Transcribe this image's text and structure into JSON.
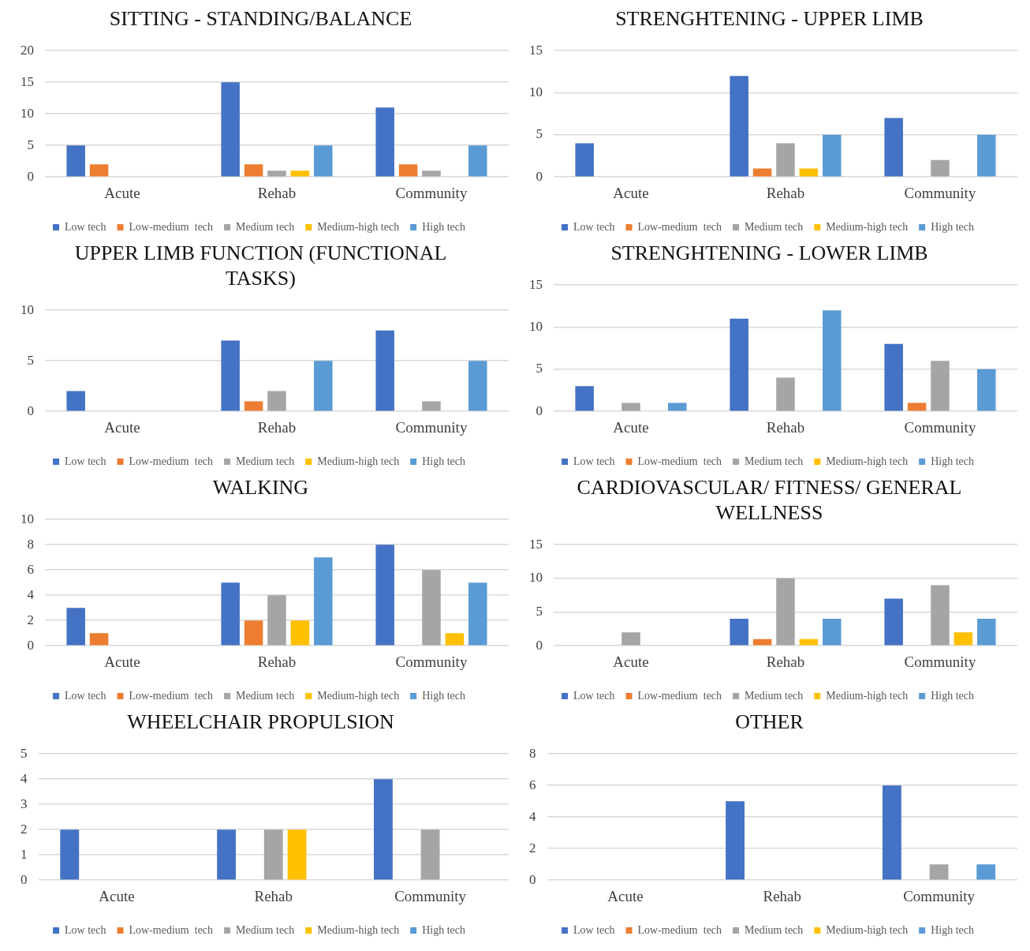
{
  "chart_data": [
    {
      "type": "bar",
      "title": "SITTING - STANDING/BALANCE",
      "categories": [
        "Acute",
        "Rehab",
        "Community"
      ],
      "ylim": [
        0,
        20
      ],
      "yticks": [
        0,
        5,
        10,
        15,
        20
      ],
      "grid": "y",
      "legend": "bottom",
      "series": [
        {
          "name": "Low tech",
          "color": "#4472c4",
          "values": [
            5,
            15,
            11
          ]
        },
        {
          "name": "Low-medium  tech",
          "color": "#ed7d31",
          "values": [
            2,
            2,
            2
          ]
        },
        {
          "name": "Medium tech",
          "color": "#a5a5a5",
          "values": [
            0,
            1,
            1
          ]
        },
        {
          "name": "Medium-high tech",
          "color": "#ffc000",
          "values": [
            0,
            1,
            0
          ]
        },
        {
          "name": "High tech",
          "color": "#5b9bd5",
          "values": [
            0,
            5,
            5
          ]
        }
      ]
    },
    {
      "type": "bar",
      "title": "STRENGHTENING - UPPER LIMB",
      "categories": [
        "Acute",
        "Rehab",
        "Community"
      ],
      "ylim": [
        0,
        15
      ],
      "yticks": [
        0,
        5,
        10,
        15
      ],
      "grid": "y",
      "legend": "bottom",
      "series": [
        {
          "name": "Low tech",
          "color": "#4472c4",
          "values": [
            4,
            12,
            7
          ]
        },
        {
          "name": "Low-medium  tech",
          "color": "#ed7d31",
          "values": [
            0,
            1,
            0
          ]
        },
        {
          "name": "Medium tech",
          "color": "#a5a5a5",
          "values": [
            0,
            4,
            2
          ]
        },
        {
          "name": "Medium-high tech",
          "color": "#ffc000",
          "values": [
            0,
            1,
            0
          ]
        },
        {
          "name": "High tech",
          "color": "#5b9bd5",
          "values": [
            0,
            5,
            5
          ]
        }
      ]
    },
    {
      "type": "bar",
      "title": "UPPER LIMB FUNCTION (FUNCTIONAL TASKS)",
      "categories": [
        "Acute",
        "Rehab",
        "Community"
      ],
      "ylim": [
        0,
        10
      ],
      "yticks": [
        0,
        5,
        10
      ],
      "grid": "y",
      "legend": "bottom",
      "series": [
        {
          "name": "Low tech",
          "color": "#4472c4",
          "values": [
            2,
            7,
            8
          ]
        },
        {
          "name": "Low-medium  tech",
          "color": "#ed7d31",
          "values": [
            0,
            1,
            0
          ]
        },
        {
          "name": "Medium tech",
          "color": "#a5a5a5",
          "values": [
            0,
            2,
            1
          ]
        },
        {
          "name": "Medium-high tech",
          "color": "#ffc000",
          "values": [
            0,
            0,
            0
          ]
        },
        {
          "name": "High tech",
          "color": "#5b9bd5",
          "values": [
            0,
            5,
            5
          ]
        }
      ]
    },
    {
      "type": "bar",
      "title": "STRENGHTENING - LOWER LIMB",
      "categories": [
        "Acute",
        "Rehab",
        "Community"
      ],
      "ylim": [
        0,
        15
      ],
      "yticks": [
        0,
        5,
        10,
        15
      ],
      "grid": "y",
      "legend": "bottom",
      "series": [
        {
          "name": "Low tech",
          "color": "#4472c4",
          "values": [
            3,
            11,
            8
          ]
        },
        {
          "name": "Low-medium  tech",
          "color": "#ed7d31",
          "values": [
            0,
            0,
            1
          ]
        },
        {
          "name": "Medium tech",
          "color": "#a5a5a5",
          "values": [
            1,
            4,
            6
          ]
        },
        {
          "name": "Medium-high tech",
          "color": "#ffc000",
          "values": [
            0,
            0,
            0
          ]
        },
        {
          "name": "High tech",
          "color": "#5b9bd5",
          "values": [
            1,
            12,
            5
          ]
        }
      ]
    },
    {
      "type": "bar",
      "title": "WALKING",
      "categories": [
        "Acute",
        "Rehab",
        "Community"
      ],
      "ylim": [
        0,
        10
      ],
      "yticks": [
        0,
        2,
        4,
        6,
        8,
        10
      ],
      "grid": "y",
      "legend": "bottom",
      "series": [
        {
          "name": "Low tech",
          "color": "#4472c4",
          "values": [
            3,
            5,
            8
          ]
        },
        {
          "name": "Low-medium  tech",
          "color": "#ed7d31",
          "values": [
            1,
            2,
            0
          ]
        },
        {
          "name": "Medium tech",
          "color": "#a5a5a5",
          "values": [
            0,
            4,
            6
          ]
        },
        {
          "name": "Medium-high tech",
          "color": "#ffc000",
          "values": [
            0,
            2,
            1
          ]
        },
        {
          "name": "High tech",
          "color": "#5b9bd5",
          "values": [
            0,
            7,
            5
          ]
        }
      ]
    },
    {
      "type": "bar",
      "title": "CARDIOVASCULAR/ FITNESS/ GENERAL WELLNESS",
      "categories": [
        "Acute",
        "Rehab",
        "Community"
      ],
      "ylim": [
        0,
        15
      ],
      "yticks": [
        0,
        5,
        10,
        15
      ],
      "grid": "y",
      "legend": "bottom",
      "series": [
        {
          "name": "Low tech",
          "color": "#4472c4",
          "values": [
            0,
            4,
            7
          ]
        },
        {
          "name": "Low-medium  tech",
          "color": "#ed7d31",
          "values": [
            0,
            1,
            0
          ]
        },
        {
          "name": "Medium tech",
          "color": "#a5a5a5",
          "values": [
            2,
            10,
            9
          ]
        },
        {
          "name": "Medium-high tech",
          "color": "#ffc000",
          "values": [
            0,
            1,
            2
          ]
        },
        {
          "name": "High tech",
          "color": "#5b9bd5",
          "values": [
            0,
            4,
            4
          ]
        }
      ]
    },
    {
      "type": "bar",
      "title": "WHEELCHAIR PROPULSION",
      "categories": [
        "Acute",
        "Rehab",
        "Community"
      ],
      "ylim": [
        0,
        5
      ],
      "yticks": [
        0,
        1,
        2,
        3,
        4,
        5
      ],
      "grid": "y",
      "legend": "bottom",
      "series": [
        {
          "name": "Low tech",
          "color": "#4472c4",
          "values": [
            2,
            2,
            4
          ]
        },
        {
          "name": "Low-medium  tech",
          "color": "#ed7d31",
          "values": [
            0,
            0,
            0
          ]
        },
        {
          "name": "Medium tech",
          "color": "#a5a5a5",
          "values": [
            0,
            2,
            2
          ]
        },
        {
          "name": "Medium-high tech",
          "color": "#ffc000",
          "values": [
            0,
            2,
            0
          ]
        },
        {
          "name": "High tech",
          "color": "#5b9bd5",
          "values": [
            0,
            0,
            0
          ]
        }
      ]
    },
    {
      "type": "bar",
      "title": "OTHER",
      "categories": [
        "Acute",
        "Rehab",
        "Community"
      ],
      "ylim": [
        0,
        8
      ],
      "yticks": [
        0,
        2,
        4,
        6,
        8
      ],
      "grid": "y",
      "legend": "bottom",
      "series": [
        {
          "name": "Low tech",
          "color": "#4472c4",
          "values": [
            0,
            5,
            6
          ]
        },
        {
          "name": "Low-medium  tech",
          "color": "#ed7d31",
          "values": [
            0,
            0,
            0
          ]
        },
        {
          "name": "Medium tech",
          "color": "#a5a5a5",
          "values": [
            0,
            0,
            1
          ]
        },
        {
          "name": "Medium-high tech",
          "color": "#ffc000",
          "values": [
            0,
            0,
            0
          ]
        },
        {
          "name": "High tech",
          "color": "#5b9bd5",
          "values": [
            0,
            0,
            1
          ]
        }
      ]
    }
  ]
}
